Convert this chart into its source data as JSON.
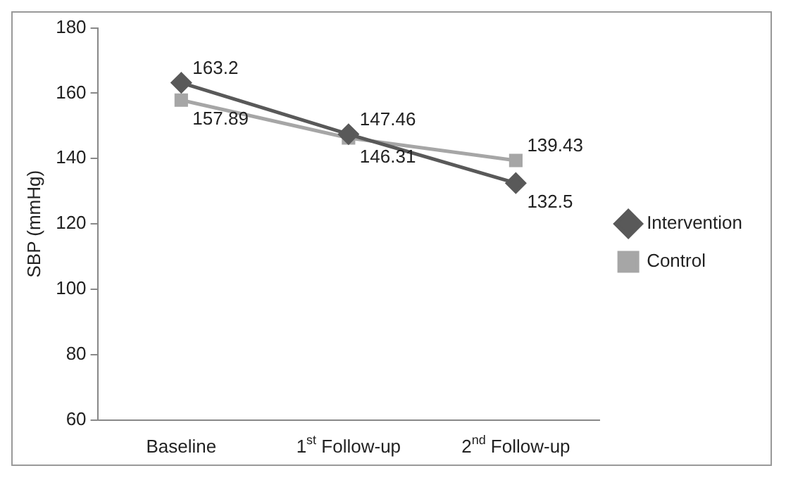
{
  "chart_data": {
    "type": "line",
    "ylabel": "SBP (mmHg)",
    "categories": [
      "Baseline",
      "1$^{st}$ Follow-up",
      "2$^{nd}$ Follow-up"
    ],
    "series": [
      {
        "name": "Intervention",
        "color": "#595959",
        "marker": "diamond",
        "values": [
          163.2,
          147.46,
          132.5
        ]
      },
      {
        "name": "Control",
        "color": "#a6a6a6",
        "marker": "square",
        "values": [
          157.89,
          146.31,
          139.43
        ]
      }
    ],
    "ylim": [
      60,
      180
    ],
    "yticks": [
      60,
      80,
      100,
      120,
      140,
      160,
      180
    ],
    "grid": false,
    "legend": "right",
    "data_labels": true,
    "line_style": "solid"
  }
}
